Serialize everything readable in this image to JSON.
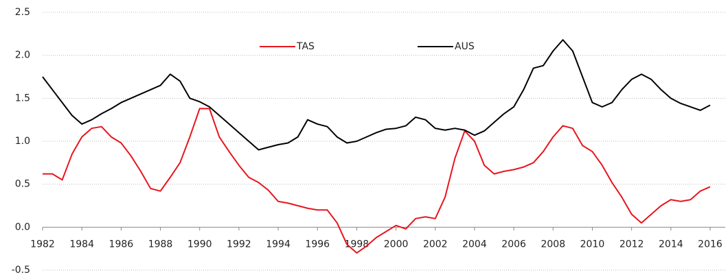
{
  "chart_data": {
    "type": "line",
    "x": [
      1982,
      1982.5,
      1983,
      1983.5,
      1984,
      1984.5,
      1985,
      1985.5,
      1986,
      1986.5,
      1987,
      1987.5,
      1988,
      1988.5,
      1989,
      1989.5,
      1990,
      1990.5,
      1991,
      1991.5,
      1992,
      1992.5,
      1993,
      1993.5,
      1994,
      1994.5,
      1995,
      1995.5,
      1996,
      1996.5,
      1997,
      1997.5,
      1998,
      1998.5,
      1999,
      1999.5,
      2000,
      2000.5,
      2001,
      2001.5,
      2002,
      2002.5,
      2003,
      2003.5,
      2004,
      2004.5,
      2005,
      2005.5,
      2006,
      2006.5,
      2007,
      2007.5,
      2008,
      2008.5,
      2009,
      2009.5,
      2010,
      2010.5,
      2011,
      2011.5,
      2012,
      2012.5,
      2013,
      2013.5,
      2014,
      2014.5,
      2015,
      2015.5,
      2016
    ],
    "series": [
      {
        "name": "TAS",
        "color": "#e8141c",
        "values": [
          0.62,
          0.62,
          0.55,
          0.85,
          1.05,
          1.15,
          1.17,
          1.05,
          0.98,
          0.83,
          0.65,
          0.45,
          0.42,
          0.58,
          0.75,
          1.05,
          1.38,
          1.38,
          1.05,
          0.88,
          0.72,
          0.58,
          0.52,
          0.43,
          0.3,
          0.28,
          0.25,
          0.22,
          0.2,
          0.2,
          0.05,
          -0.2,
          -0.3,
          -0.22,
          -0.12,
          -0.05,
          0.02,
          -0.02,
          0.1,
          0.12,
          0.1,
          0.35,
          0.8,
          1.12,
          1.0,
          0.72,
          0.62,
          0.65,
          0.67,
          0.7,
          0.75,
          0.88,
          1.05,
          1.18,
          1.15,
          0.95,
          0.88,
          0.72,
          0.52,
          0.35,
          0.15,
          0.05,
          0.15,
          0.25,
          0.32,
          0.3,
          0.32,
          0.42,
          0.47
        ]
      },
      {
        "name": "AUS",
        "color": "#000000",
        "values": [
          1.75,
          1.6,
          1.45,
          1.3,
          1.2,
          1.25,
          1.32,
          1.38,
          1.45,
          1.5,
          1.55,
          1.6,
          1.65,
          1.78,
          1.7,
          1.5,
          1.46,
          1.4,
          1.3,
          1.2,
          1.1,
          1.0,
          0.9,
          0.93,
          0.96,
          0.98,
          1.05,
          1.25,
          1.2,
          1.17,
          1.05,
          0.98,
          1.0,
          1.05,
          1.1,
          1.14,
          1.15,
          1.18,
          1.28,
          1.25,
          1.15,
          1.13,
          1.15,
          1.13,
          1.07,
          1.12,
          1.22,
          1.32,
          1.4,
          1.6,
          1.85,
          1.88,
          2.05,
          2.18,
          2.05,
          1.75,
          1.45,
          1.4,
          1.45,
          1.6,
          1.72,
          1.78,
          1.72,
          1.6,
          1.5,
          1.44,
          1.4,
          1.36,
          1.42
        ]
      }
    ],
    "xlim": [
      1982,
      2016
    ],
    "xticks": [
      1982,
      1984,
      1986,
      1988,
      1990,
      1992,
      1994,
      1996,
      1998,
      2000,
      2002,
      2004,
      2006,
      2008,
      2010,
      2012,
      2014,
      2016
    ],
    "ylim": [
      -0.5,
      2.5
    ],
    "yticks": [
      -0.5,
      {
        "value": 0,
        "label": "0.0"
      },
      0.5,
      {
        "value": 1,
        "label": "1.0"
      },
      1.5,
      {
        "value": 2,
        "label": "2.0"
      },
      2.5
    ],
    "grid": true
  }
}
